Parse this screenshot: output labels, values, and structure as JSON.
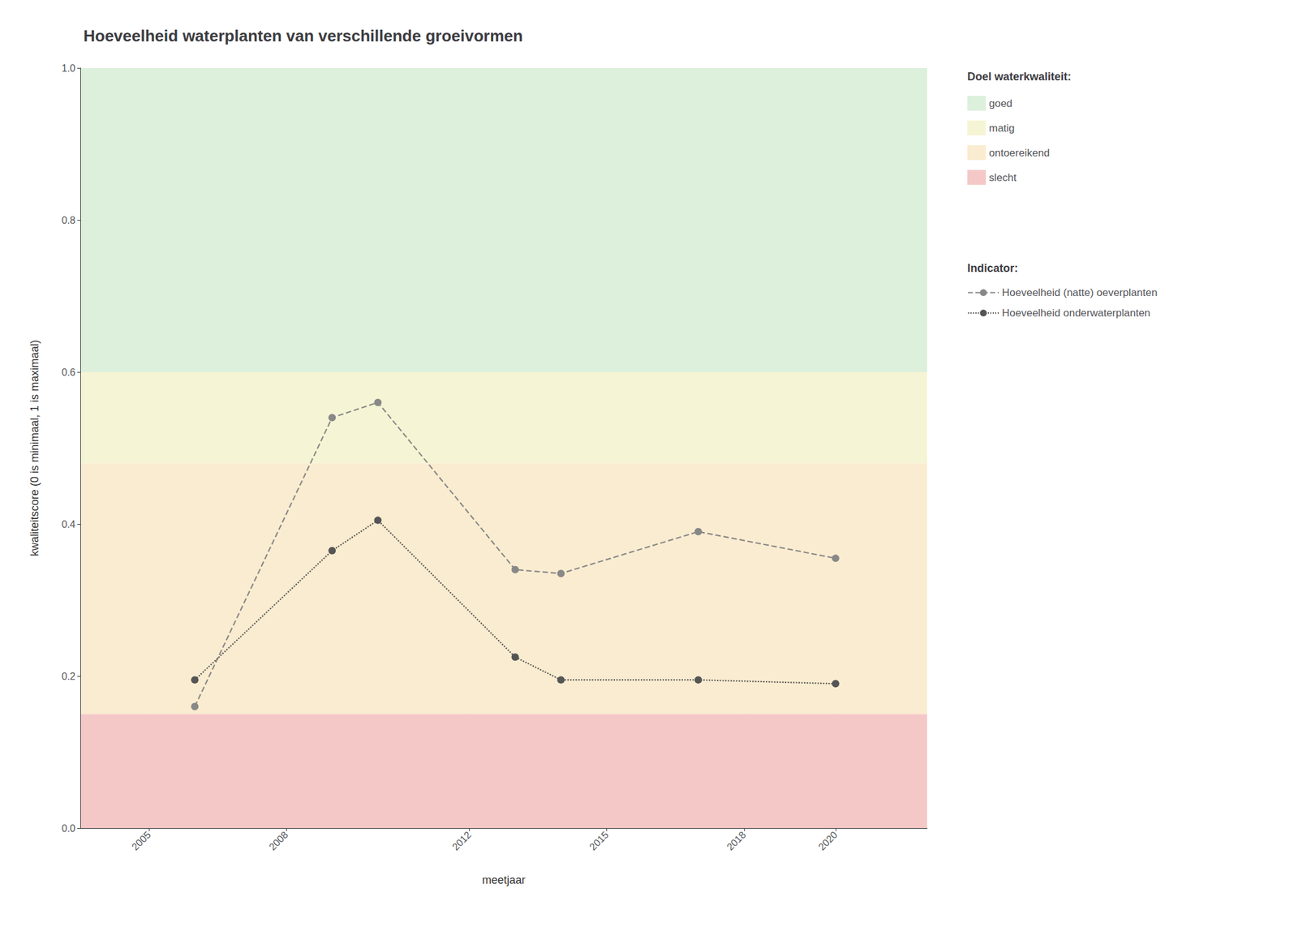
{
  "chart_data": {
    "type": "line",
    "title": "Hoeveelheid waterplanten van verschillende groeivormen",
    "x_label": "meetjaar",
    "y_label": "kwaliteitscore (0 is minimaal, 1 is maximaal)",
    "xlim": [
      2003.5,
      2022.0
    ],
    "xticks": [
      2005,
      2008,
      2012,
      2015,
      2018,
      2020
    ],
    "ylim": [
      0.0,
      1.0
    ],
    "yticks": [
      {
        "value": 0.0,
        "label": "0.0"
      },
      0.2,
      0.4,
      0.6,
      0.8,
      {
        "value": 1.0,
        "label": "1.0"
      }
    ],
    "grid": true,
    "zones_title": "Doel waterkwaliteit:",
    "zones": [
      {
        "ymin": 0.6,
        "ymax": 1.0,
        "color": "#dcf0dc",
        "label": "goed"
      },
      {
        "ymin": 0.48,
        "ymax": 0.6,
        "color": "#f5f5d5",
        "label": "matig"
      },
      {
        "ymin": 0.15,
        "ymax": 0.48,
        "color": "#faecd0",
        "label": "ontoereikend"
      },
      {
        "ymin": 0.0,
        "ymax": 0.15,
        "color": "#f5c8c8",
        "label": "slecht"
      }
    ],
    "legend_title": "Indicator:",
    "series": [
      {
        "name": "Hoeveelheid (natte) oeverplanten",
        "x": [
          2006,
          2009,
          2010,
          2013,
          2014,
          2017,
          2020
        ],
        "values": [
          0.16,
          0.54,
          0.56,
          0.34,
          0.335,
          0.39,
          0.355
        ],
        "line_style": "dashed",
        "marker": "circle",
        "color": "#888888"
      },
      {
        "name": "Hoeveelheid onderwaterplanten",
        "x": [
          2006,
          2009,
          2010,
          2013,
          2014,
          2017,
          2020
        ],
        "values": [
          0.195,
          0.365,
          0.405,
          0.225,
          0.195,
          0.195,
          0.19
        ],
        "line_style": "dotted",
        "marker": "circle",
        "color": "#555555"
      }
    ]
  }
}
